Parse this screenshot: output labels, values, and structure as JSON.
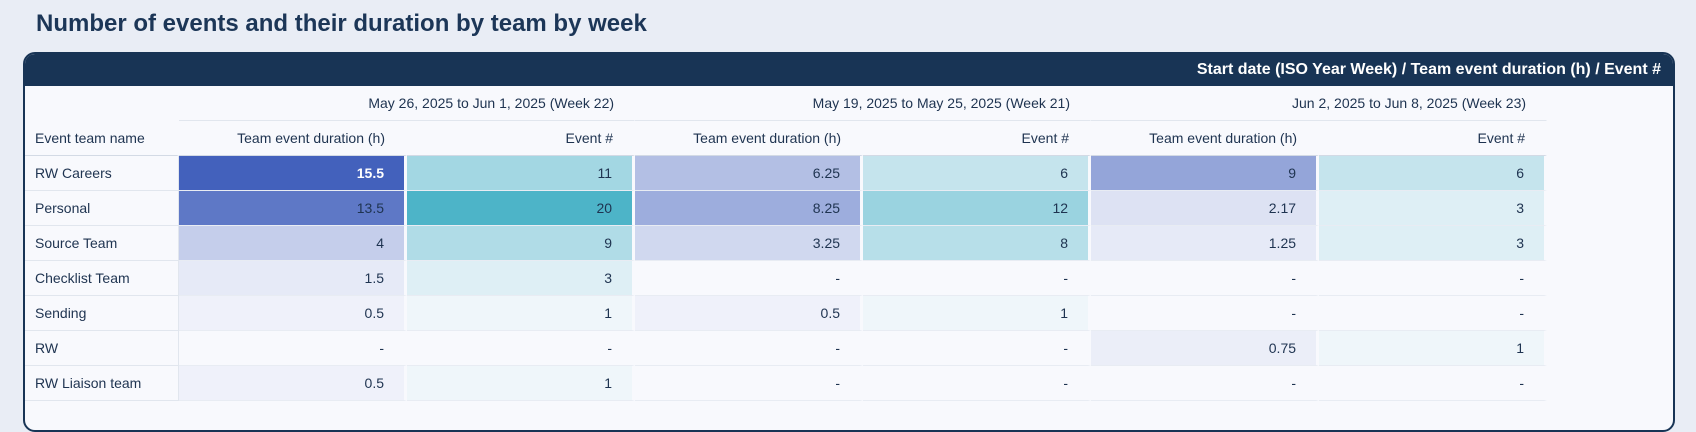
{
  "title": "Number of events and their duration by team by week",
  "header": {
    "columns_caption": "Start date (ISO Year Week) / Team event duration (h) / Event #",
    "row_dimension": "Event team name"
  },
  "weeks": [
    "May 26, 2025 to Jun 1, 2025 (Week 22)",
    "May 19, 2025 to May 25, 2025 (Week 21)",
    "Jun 2, 2025 to Jun 8, 2025 (Week 23)"
  ],
  "metrics": [
    "Team event duration (h)",
    "Event #"
  ],
  "colors": {
    "duration_scale": "#3f5ebb",
    "events_scale": "#4ab3c7",
    "header_bg": "#183455",
    "panel_bg": "#f8f9fd",
    "page_bg": "#e9edf5"
  },
  "rows": [
    {
      "team": "RW Careers",
      "values": [
        "15.5",
        "11",
        "6.25",
        "6",
        "9",
        "6"
      ],
      "levels": [
        1.0,
        0.5,
        0.38,
        0.3,
        0.55,
        0.3
      ]
    },
    {
      "team": "Personal",
      "values": [
        "13.5",
        "20",
        "8.25",
        "12",
        "2.17",
        "3"
      ],
      "levels": [
        0.85,
        1.0,
        0.5,
        0.55,
        0.15,
        0.15
      ]
    },
    {
      "team": "Source Team",
      "values": [
        "4",
        "9",
        "3.25",
        "8",
        "1.25",
        "3"
      ],
      "levels": [
        0.28,
        0.42,
        0.22,
        0.38,
        0.1,
        0.15
      ]
    },
    {
      "team": "Checklist Team",
      "values": [
        "1.5",
        "3",
        "-",
        "-",
        "-",
        "-"
      ],
      "levels": [
        0.1,
        0.15,
        0,
        0,
        0,
        0
      ]
    },
    {
      "team": "Sending",
      "values": [
        "0.5",
        "1",
        "0.5",
        "1",
        "-",
        "-"
      ],
      "levels": [
        0.05,
        0.05,
        0.05,
        0.05,
        0,
        0
      ]
    },
    {
      "team": "RW",
      "values": [
        "-",
        "-",
        "-",
        "-",
        "0.75",
        "1"
      ],
      "levels": [
        0,
        0,
        0,
        0,
        0.07,
        0.05
      ]
    },
    {
      "team": "RW Liaison team",
      "values": [
        "0.5",
        "1",
        "-",
        "-",
        "-",
        "-"
      ],
      "levels": [
        0.05,
        0.05,
        0,
        0,
        0,
        0
      ]
    }
  ]
}
